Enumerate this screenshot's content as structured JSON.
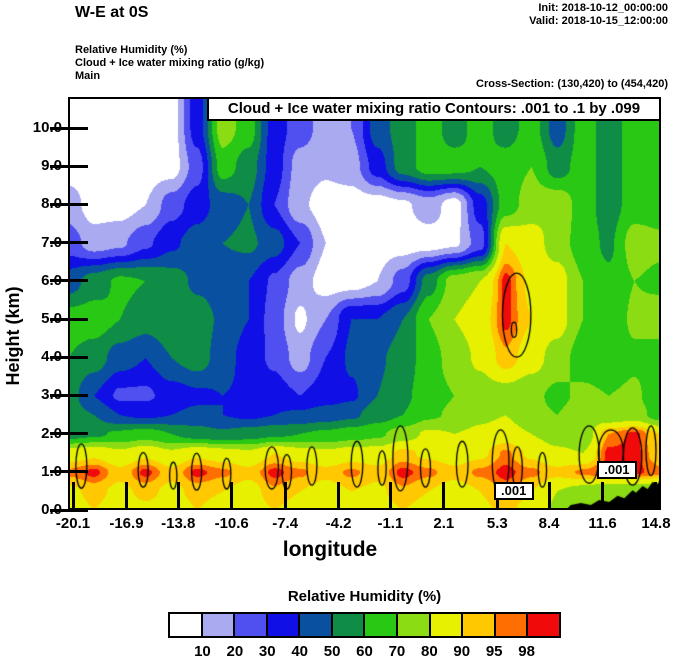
{
  "header": {
    "title": "W-E at 0S",
    "init_label": "Init: 2018-10-12_00:00:00",
    "valid_label": "Valid: 2018-10-15_12:00:00",
    "subtitle_line1": "Relative Humidity  (%)",
    "subtitle_line2": "Cloud + Ice water mixing ratio  (g/kg)",
    "subtitle_line3": "Main",
    "cross_section": "Cross-Section: (130,420) to (454,420)"
  },
  "plot": {
    "title": "Cloud + Ice water mixing ratio Contours: .001 to .1 by .099",
    "xlabel": "longitude",
    "ylabel": "Height (km)",
    "x_ticks": [
      "-20.1",
      "-16.9",
      "-13.8",
      "-10.6",
      "-7.4",
      "-4.2",
      "-1.1",
      "2.1",
      "5.3",
      "8.4",
      "11.6",
      "14.8"
    ],
    "y_ticks": [
      "0.0",
      "1.0",
      "2.0",
      "3.0",
      "4.0",
      "5.0",
      "6.0",
      "7.0",
      "8.0",
      "9.0",
      "10.0"
    ],
    "contour_labels": [
      {
        "text": ".001",
        "lon": 6.28,
        "km": 0.5
      },
      {
        "text": ".001",
        "lon": 12.46,
        "km": 1.05
      }
    ]
  },
  "legend": {
    "title": "Relative Humidity  (%)",
    "labels": [
      "10",
      "20",
      "30",
      "40",
      "50",
      "60",
      "70",
      "80",
      "90",
      "95",
      "98"
    ],
    "colors": [
      "#ffffff",
      "#aaaaf0",
      "#5050f0",
      "#0f0fe6",
      "#0a50a0",
      "#0f8c46",
      "#28c814",
      "#8cdc14",
      "#e6f000",
      "#ffc800",
      "#ff6e00",
      "#f00a0a"
    ]
  },
  "chart_data": {
    "type": "heatmap",
    "subtype": "filled_contour_vertical_cross_section",
    "title": "Cloud + Ice water mixing ratio Contours: .001 to .1 by .099",
    "xlabel": "longitude",
    "ylabel": "Height (km)",
    "x_tick_values": [
      -20.1,
      -16.9,
      -13.8,
      -10.6,
      -7.4,
      -4.2,
      -1.1,
      2.1,
      5.3,
      8.4,
      11.6,
      14.8
    ],
    "y_tick_values": [
      0,
      1,
      2,
      3,
      4,
      5,
      6,
      7,
      8,
      9,
      10
    ],
    "xlim": [
      -20.4,
      15.1
    ],
    "ylim": [
      0,
      10.81
    ],
    "shaded_field": "Relative Humidity (%)",
    "rh_levels": [
      10,
      20,
      30,
      40,
      50,
      60,
      70,
      80,
      90,
      95,
      98
    ],
    "grid": {
      "longitudes": [
        -20.4,
        -18.86,
        -17.31,
        -15.77,
        -14.23,
        -12.68,
        -11.14,
        -9.6,
        -8.05,
        -6.51,
        -4.97,
        -3.42,
        -1.88,
        -0.34,
        1.21,
        2.75,
        4.29,
        5.84,
        7.38,
        8.92,
        10.47,
        12.01,
        13.55,
        15.1
      ],
      "heights_km": [
        0,
        0.5,
        1,
        1.5,
        2,
        2.5,
        3,
        4,
        5,
        6,
        7,
        8,
        9,
        10
      ],
      "rh_percent": [
        [
          85,
          90,
          85,
          88,
          85,
          90,
          86,
          84,
          90,
          86,
          84,
          88,
          85,
          90,
          86,
          84,
          88,
          92,
          86,
          78,
          72,
          70,
          70,
          70
        ],
        [
          88,
          92,
          88,
          92,
          88,
          92,
          90,
          86,
          94,
          90,
          86,
          90,
          88,
          94,
          90,
          86,
          90,
          96,
          90,
          80,
          75,
          70,
          70,
          70
        ],
        [
          96,
          99,
          92,
          99,
          92,
          99,
          96,
          92,
          99,
          96,
          92,
          96,
          92,
          99,
          96,
          92,
          96,
          99,
          96,
          92,
          96,
          99,
          99,
          96
        ],
        [
          85,
          88,
          82,
          88,
          82,
          88,
          85,
          82,
          90,
          85,
          82,
          85,
          85,
          92,
          88,
          85,
          88,
          96,
          88,
          82,
          80,
          99,
          99,
          92
        ],
        [
          55,
          58,
          62,
          65,
          60,
          55,
          52,
          55,
          58,
          60,
          62,
          65,
          68,
          75,
          82,
          80,
          82,
          85,
          80,
          75,
          72,
          95,
          99,
          90
        ],
        [
          55,
          50,
          40,
          38,
          40,
          42,
          40,
          38,
          40,
          42,
          45,
          48,
          55,
          60,
          68,
          72,
          78,
          80,
          72,
          70,
          75,
          72,
          75,
          65
        ],
        [
          55,
          40,
          28,
          28,
          35,
          38,
          40,
          38,
          35,
          30,
          35,
          38,
          50,
          58,
          65,
          70,
          75,
          75,
          72,
          68,
          72,
          70,
          72,
          62
        ],
        [
          60,
          55,
          45,
          40,
          50,
          55,
          45,
          35,
          28,
          15,
          30,
          42,
          48,
          55,
          65,
          75,
          82,
          94,
          85,
          75,
          65,
          62,
          68,
          65
        ],
        [
          65,
          65,
          60,
          55,
          60,
          55,
          48,
          40,
          25,
          8,
          20,
          40,
          40,
          50,
          70,
          80,
          85,
          99,
          90,
          85,
          70,
          62,
          72,
          75
        ],
        [
          45,
          55,
          62,
          60,
          55,
          48,
          45,
          40,
          28,
          15,
          5,
          5,
          10,
          25,
          55,
          75,
          80,
          99,
          88,
          85,
          70,
          62,
          70,
          68
        ],
        [
          25,
          15,
          18,
          28,
          38,
          45,
          50,
          52,
          45,
          30,
          10,
          5,
          5,
          5,
          5,
          8,
          25,
          90,
          85,
          75,
          65,
          58,
          75,
          72
        ],
        [
          15,
          5,
          5,
          10,
          25,
          35,
          45,
          50,
          30,
          12,
          5,
          5,
          5,
          8,
          15,
          5,
          35,
          65,
          75,
          78,
          65,
          55,
          65,
          65
        ],
        [
          5,
          5,
          5,
          5,
          5,
          25,
          65,
          55,
          35,
          15,
          12,
          15,
          35,
          55,
          65,
          65,
          60,
          65,
          70,
          55,
          65,
          55,
          65,
          65
        ],
        [
          5,
          5,
          5,
          5,
          5,
          35,
          75,
          65,
          35,
          25,
          15,
          20,
          45,
          55,
          65,
          55,
          65,
          55,
          65,
          45,
          65,
          55,
          65,
          60
        ]
      ]
    },
    "terrain_profile_lon_km": [
      [
        9.4,
        0
      ],
      [
        9.7,
        0.13
      ],
      [
        10.3,
        0.18
      ],
      [
        10.9,
        0.13
      ],
      [
        11.4,
        0.26
      ],
      [
        12.0,
        0.21
      ],
      [
        12.5,
        0.37
      ],
      [
        12.9,
        0.31
      ],
      [
        13.4,
        0.52
      ],
      [
        13.6,
        0.45
      ],
      [
        14.0,
        0.63
      ],
      [
        14.3,
        0.55
      ],
      [
        14.6,
        0.73
      ],
      [
        14.9,
        0.68
      ],
      [
        15.1,
        0.84
      ]
    ],
    "cloud_ice_contours": {
      "levels_g_per_kg": [
        0.001,
        0.1
      ],
      "outlines": [
        {
          "lon": 6.46,
          "km": 5.1,
          "rx_lon": 0.85,
          "ry_km": 1.1
        },
        {
          "lon": 6.3,
          "km": 4.72,
          "rx_lon": 0.16,
          "ry_km": 0.2
        },
        {
          "lon": -19.6,
          "km": 1.15,
          "rx_lon": 0.33,
          "ry_km": 0.58
        },
        {
          "lon": -15.9,
          "km": 1.05,
          "rx_lon": 0.3,
          "ry_km": 0.45
        },
        {
          "lon": -14.1,
          "km": 0.9,
          "rx_lon": 0.22,
          "ry_km": 0.35
        },
        {
          "lon": -12.7,
          "km": 1.0,
          "rx_lon": 0.3,
          "ry_km": 0.48
        },
        {
          "lon": -10.9,
          "km": 0.95,
          "rx_lon": 0.25,
          "ry_km": 0.4
        },
        {
          "lon": -8.2,
          "km": 1.1,
          "rx_lon": 0.4,
          "ry_km": 0.55
        },
        {
          "lon": -7.3,
          "km": 1.0,
          "rx_lon": 0.28,
          "ry_km": 0.45
        },
        {
          "lon": -5.8,
          "km": 1.15,
          "rx_lon": 0.3,
          "ry_km": 0.5
        },
        {
          "lon": -3.1,
          "km": 1.2,
          "rx_lon": 0.35,
          "ry_km": 0.6
        },
        {
          "lon": -1.6,
          "km": 1.1,
          "rx_lon": 0.25,
          "ry_km": 0.45
        },
        {
          "lon": -0.5,
          "km": 1.35,
          "rx_lon": 0.45,
          "ry_km": 0.85
        },
        {
          "lon": 1.0,
          "km": 1.1,
          "rx_lon": 0.3,
          "ry_km": 0.5
        },
        {
          "lon": 3.2,
          "km": 1.2,
          "rx_lon": 0.35,
          "ry_km": 0.6
        },
        {
          "lon": 5.5,
          "km": 1.25,
          "rx_lon": 0.5,
          "ry_km": 0.85
        },
        {
          "lon": 6.5,
          "km": 1.1,
          "rx_lon": 0.3,
          "ry_km": 0.55
        },
        {
          "lon": 8.0,
          "km": 1.05,
          "rx_lon": 0.25,
          "ry_km": 0.45
        },
        {
          "lon": 10.8,
          "km": 1.45,
          "rx_lon": 0.6,
          "ry_km": 0.75
        },
        {
          "lon": 12.1,
          "km": 1.5,
          "rx_lon": 0.75,
          "ry_km": 0.6
        },
        {
          "lon": 13.4,
          "km": 1.4,
          "rx_lon": 0.55,
          "ry_km": 0.75
        },
        {
          "lon": 14.5,
          "km": 1.55,
          "rx_lon": 0.3,
          "ry_km": 0.65
        }
      ]
    },
    "legend": {
      "title": "Relative Humidity  (%)",
      "tick_labels": [
        10,
        20,
        30,
        40,
        50,
        60,
        70,
        80,
        90,
        95,
        98
      ],
      "colors": [
        "#ffffff",
        "#aaaaf0",
        "#5050f0",
        "#0f0fe6",
        "#0a50a0",
        "#0f8c46",
        "#28c814",
        "#8cdc14",
        "#e6f000",
        "#ffc800",
        "#ff6e00",
        "#f00a0a"
      ],
      "position": "bottom"
    }
  }
}
